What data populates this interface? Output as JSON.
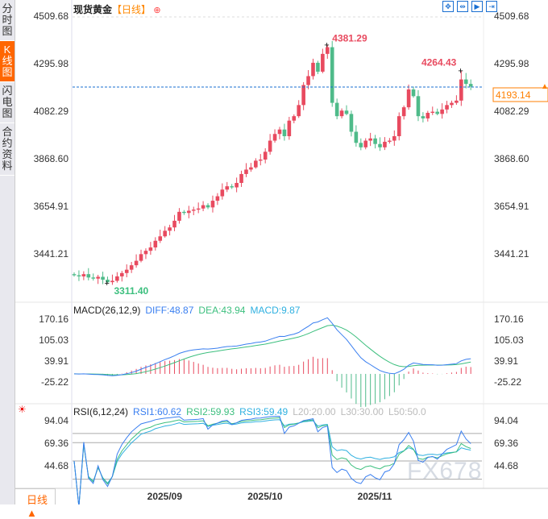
{
  "sidebar": {
    "tabs": [
      {
        "label": "分时图"
      },
      {
        "label": "K线图",
        "active": true
      },
      {
        "label": "闪电图"
      },
      {
        "label": "合约资料"
      }
    ]
  },
  "header": {
    "symbol": "现货黄金",
    "period": "【日线】",
    "add_icon": "circle-plus-icon"
  },
  "toolbar": {
    "icons": [
      "crosshair-icon",
      "fit-icon",
      "play-icon",
      "exit-right-icon"
    ]
  },
  "bottom_tab": {
    "label": "日线 ▲"
  },
  "watermark": "FX678",
  "colors": {
    "up": "#e84a5f",
    "down": "#4fbb8a",
    "diff": "#3a7ff0",
    "dea": "#3cbf7e",
    "rsi1": "#3a7ff0",
    "rsi2": "#3cbf7e",
    "rsi3": "#2fb0e0",
    "last": "#ff7f00"
  },
  "chart_data": [
    {
      "type": "candlestick",
      "title": "现货黄金【日线】",
      "yticks": [
        "4509.68",
        "4295.98",
        "4082.29",
        "3868.60",
        "3654.91",
        "3441.21"
      ],
      "ylim": [
        3300,
        4509.68
      ],
      "xticks": [
        {
          "index": 19,
          "label": "2025/09"
        },
        {
          "index": 40,
          "label": "2025/10"
        },
        {
          "index": 63,
          "label": "2025/11"
        }
      ],
      "close": [
        3345,
        3340,
        3350,
        3335,
        3330,
        3338,
        3325,
        3314,
        3320,
        3340,
        3355,
        3370,
        3390,
        3410,
        3440,
        3455,
        3470,
        3500,
        3520,
        3545,
        3560,
        3590,
        3630,
        3625,
        3635,
        3640,
        3645,
        3660,
        3650,
        3680,
        3700,
        3730,
        3745,
        3740,
        3760,
        3800,
        3820,
        3830,
        3860,
        3865,
        3900,
        3950,
        3980,
        4000,
        3970,
        4040,
        4060,
        4110,
        4200,
        4240,
        4300,
        4260,
        4340,
        4370,
        4120,
        4060,
        4085,
        4070,
        3990,
        3940,
        3920,
        3950,
        3960,
        3935,
        3920,
        3945,
        3950,
        3970,
        4060,
        4100,
        4180,
        4150,
        4060,
        4050,
        4075,
        4080,
        4070,
        4090,
        4110,
        4120,
        4130,
        4225,
        4205,
        4193.14
      ],
      "max": {
        "index": 53,
        "value": "4381.29"
      },
      "min": {
        "index": 7,
        "value": "3311.40"
      },
      "local_high": {
        "index": 81,
        "value": "4264.43"
      },
      "last": {
        "value": "4193.14"
      }
    },
    {
      "type": "macd",
      "label": "MACD(26,12,9)",
      "diff": "DIFF:48.87",
      "dea": "DEA:43.94",
      "macd": "MACD:9.87",
      "yticks": [
        "170.16",
        "105.03",
        "39.91",
        "-25.22"
      ]
    },
    {
      "type": "rsi",
      "label": "RSI(6,12,24)",
      "rsi1": "RSI1:60.62",
      "rsi2": "RSI2:59.93",
      "rsi3": "RSI3:59.49",
      "l20": "L20:20.00",
      "l30": "L30:30.00",
      "l50": "L50:50.0",
      "yticks": [
        "94.04",
        "69.36",
        "44.68"
      ],
      "levels": [
        80,
        70,
        50,
        30
      ]
    }
  ]
}
